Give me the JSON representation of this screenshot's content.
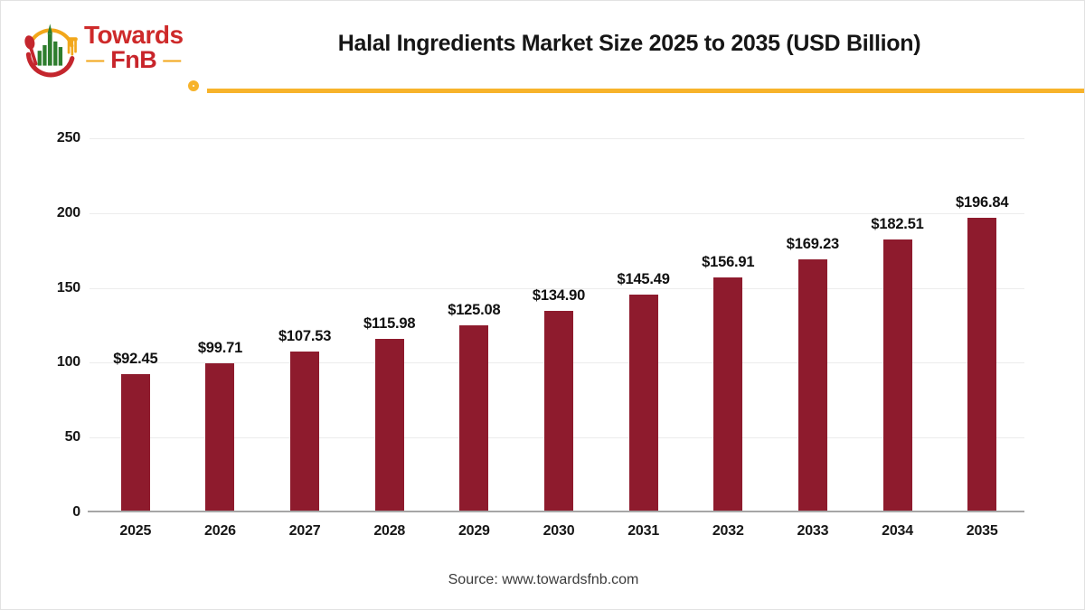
{
  "header": {
    "logo": {
      "brand_top": "Towards",
      "brand_bottom": "FnB",
      "dash": "—"
    },
    "title": "Halal Ingredients Market Size 2025 to 2035 (USD Billion)"
  },
  "chart_data": {
    "type": "bar",
    "title": "Halal Ingredients Market Size 2025 to 2035 (USD Billion)",
    "categories": [
      "2025",
      "2026",
      "2027",
      "2028",
      "2029",
      "2030",
      "2031",
      "2032",
      "2033",
      "2034",
      "2035"
    ],
    "values": [
      92.45,
      99.71,
      107.53,
      115.98,
      125.08,
      134.9,
      145.49,
      156.91,
      169.23,
      182.51,
      196.84
    ],
    "value_labels": [
      "$92.45",
      "$99.71",
      "$107.53",
      "$115.98",
      "$125.08",
      "$134.90",
      "$145.49",
      "$156.91",
      "$169.23",
      "$182.51",
      "$196.84"
    ],
    "y_ticks": [
      0,
      50,
      100,
      150,
      200,
      250
    ],
    "ylim": [
      0,
      250
    ],
    "xlabel": "",
    "ylabel": "",
    "grid": true,
    "legend": "none"
  },
  "footer": {
    "source": "Source: www.towardsfnb.com"
  },
  "colors": {
    "bar": "#8e1b2d",
    "accent_yellow": "#f7b32b",
    "brand_red": "#ce2a2a",
    "emblem_green": "#2e7d2e",
    "grid_line": "#ececec",
    "axis_line": "#a6a6a6",
    "text": "#161616",
    "source_text": "#3b3b3b"
  }
}
